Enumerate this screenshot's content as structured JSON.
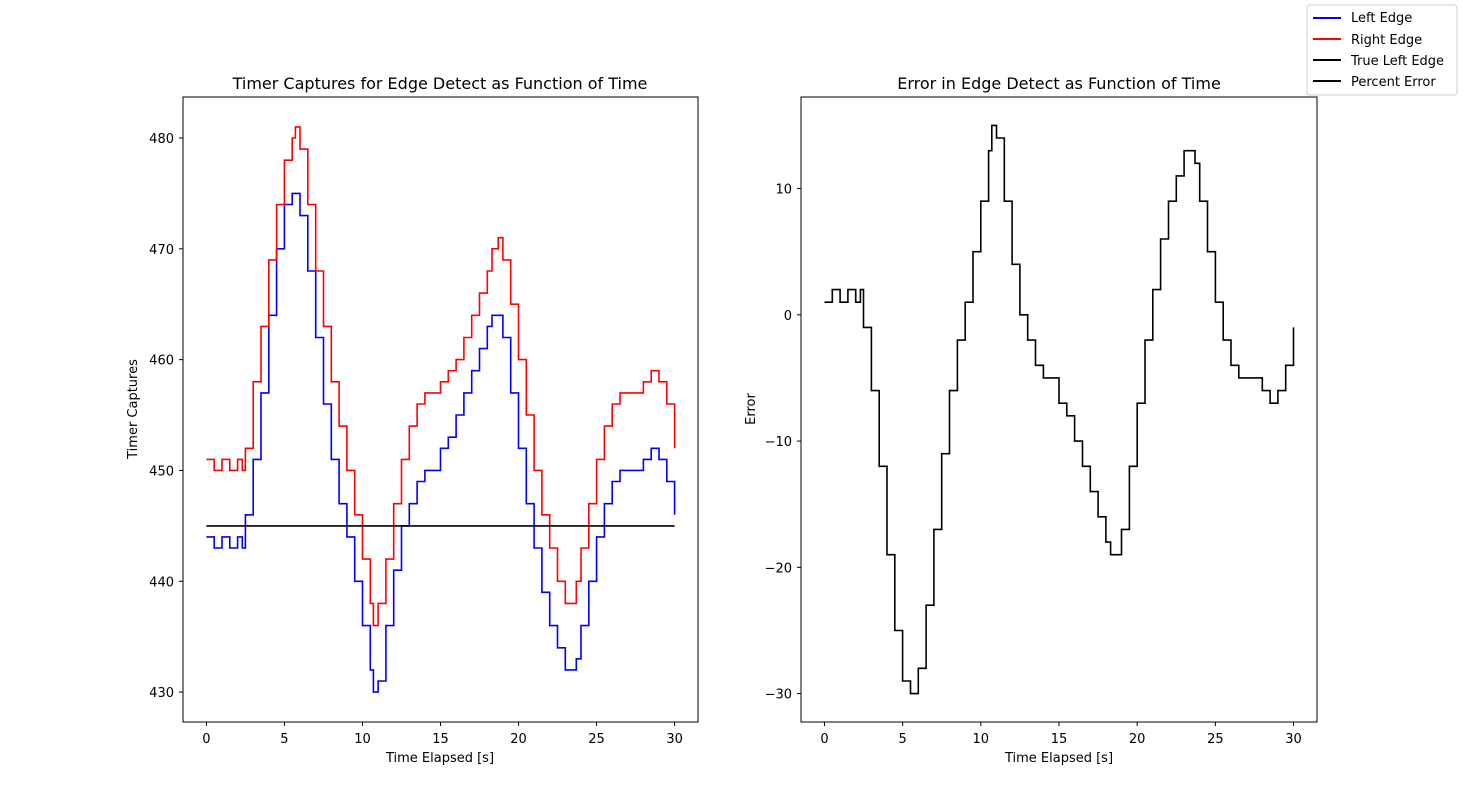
{
  "legend": {
    "placement": "upper-right",
    "entries": [
      {
        "label": "Left Edge",
        "color": "#0000ff"
      },
      {
        "label": "Right Edge",
        "color": "#ff0000"
      },
      {
        "label": "True Left Edge",
        "color": "#000000"
      },
      {
        "label": "Percent Error",
        "color": "#000000"
      }
    ]
  },
  "chart_data": [
    {
      "type": "line",
      "title": "Timer Captures for Edge Detect as Function of Time",
      "xlabel": "Time Elapsed [s]",
      "ylabel": "Timer Captures",
      "xlim": [
        -1.5,
        31.5
      ],
      "ylim": [
        427.3,
        483.7
      ],
      "xticks": [
        0,
        5,
        10,
        15,
        20,
        25,
        30
      ],
      "yticks": [
        430,
        440,
        450,
        460,
        470,
        480
      ],
      "grid": false,
      "series": [
        {
          "name": "Left Edge",
          "color": "#0000ff",
          "x": [
            0,
            0.5,
            1,
            1.5,
            2,
            2.3,
            2.5,
            3,
            3.5,
            4,
            4.5,
            5,
            5.5,
            5.7,
            6,
            6.5,
            7,
            7.5,
            8,
            8.5,
            9,
            9.5,
            10,
            10.5,
            10.7,
            11,
            11.5,
            12,
            12.5,
            13,
            13.5,
            14,
            14.5,
            15,
            15.5,
            16,
            16.5,
            17,
            17.5,
            18,
            18.3,
            18.7,
            19,
            19.5,
            20,
            20.5,
            21,
            21.5,
            22,
            22.5,
            23,
            23.3,
            23.7,
            24,
            24.5,
            25,
            25.5,
            26,
            26.5,
            27,
            27.5,
            28,
            28.5,
            29,
            29.5,
            30
          ],
          "y": [
            444,
            443,
            444,
            443,
            444,
            443,
            446,
            451,
            457,
            464,
            470,
            474,
            475,
            475,
            473,
            468,
            462,
            456,
            451,
            447,
            444,
            440,
            436,
            432,
            430,
            431,
            436,
            441,
            445,
            447,
            449,
            450,
            450,
            452,
            453,
            455,
            457,
            459,
            461,
            463,
            464,
            464,
            462,
            457,
            452,
            447,
            443,
            439,
            436,
            434,
            432,
            432,
            433,
            436,
            440,
            444,
            447,
            449,
            450,
            450,
            450,
            451,
            452,
            451,
            449,
            446
          ]
        },
        {
          "name": "Right Edge",
          "color": "#ff0000",
          "x": [
            0,
            0.5,
            1,
            1.5,
            2,
            2.3,
            2.5,
            3,
            3.5,
            4,
            4.5,
            5,
            5.5,
            5.7,
            6,
            6.5,
            7,
            7.5,
            8,
            8.5,
            9,
            9.5,
            10,
            10.5,
            10.7,
            11,
            11.5,
            12,
            12.5,
            13,
            13.5,
            14,
            14.5,
            15,
            15.5,
            16,
            16.5,
            17,
            17.5,
            18,
            18.3,
            18.7,
            19,
            19.5,
            20,
            20.5,
            21,
            21.5,
            22,
            22.5,
            23,
            23.3,
            23.7,
            24,
            24.5,
            25,
            25.5,
            26,
            26.5,
            27,
            27.5,
            28,
            28.5,
            29,
            29.5,
            30
          ],
          "y": [
            451,
            450,
            451,
            450,
            451,
            450,
            452,
            458,
            463,
            469,
            474,
            478,
            480,
            481,
            479,
            474,
            468,
            463,
            458,
            454,
            450,
            446,
            442,
            438,
            436,
            438,
            442,
            447,
            451,
            454,
            456,
            457,
            457,
            458,
            459,
            460,
            462,
            464,
            466,
            468,
            470,
            471,
            469,
            465,
            460,
            455,
            450,
            446,
            443,
            440,
            438,
            438,
            440,
            443,
            447,
            451,
            454,
            456,
            457,
            457,
            457,
            458,
            459,
            458,
            456,
            452
          ]
        },
        {
          "name": "True Left Edge",
          "color": "#000000",
          "x": [
            0,
            30
          ],
          "y": [
            445,
            445
          ]
        }
      ]
    },
    {
      "type": "line",
      "title": "Error in Edge Detect as Function of Time",
      "xlabel": "Time Elapsed [s]",
      "ylabel": "Error",
      "xlim": [
        -1.5,
        31.5
      ],
      "ylim": [
        -32.25,
        17.25
      ],
      "xticks": [
        0,
        5,
        10,
        15,
        20,
        25,
        30
      ],
      "yticks": [
        -30,
        -20,
        -10,
        0,
        10
      ],
      "grid": false,
      "series": [
        {
          "name": "Percent Error",
          "color": "#000000",
          "x": [
            0,
            0.5,
            1,
            1.5,
            2,
            2.3,
            2.5,
            3,
            3.5,
            4,
            4.5,
            5,
            5.5,
            5.7,
            6,
            6.5,
            7,
            7.5,
            8,
            8.5,
            9,
            9.5,
            10,
            10.5,
            10.7,
            11,
            11.5,
            12,
            12.5,
            13,
            13.5,
            14,
            14.5,
            15,
            15.5,
            16,
            16.5,
            17,
            17.5,
            18,
            18.3,
            18.7,
            19,
            19.5,
            20,
            20.5,
            21,
            21.5,
            22,
            22.5,
            23,
            23.3,
            23.7,
            24,
            24.5,
            25,
            25.5,
            26,
            26.5,
            27,
            27.5,
            28,
            28.5,
            29,
            29.5,
            30
          ],
          "y": [
            1,
            2,
            1,
            2,
            1,
            2,
            -1,
            -6,
            -12,
            -19,
            -25,
            -29,
            -30,
            -30,
            -28,
            -23,
            -17,
            -11,
            -6,
            -2,
            1,
            5,
            9,
            13,
            15,
            14,
            9,
            4,
            0,
            -2,
            -4,
            -5,
            -5,
            -7,
            -8,
            -10,
            -12,
            -14,
            -16,
            -18,
            -19,
            -19,
            -17,
            -12,
            -7,
            -2,
            2,
            6,
            9,
            11,
            13,
            13,
            12,
            9,
            5,
            1,
            -2,
            -4,
            -5,
            -5,
            -5,
            -6,
            -7,
            -6,
            -4,
            -1
          ]
        }
      ]
    }
  ]
}
